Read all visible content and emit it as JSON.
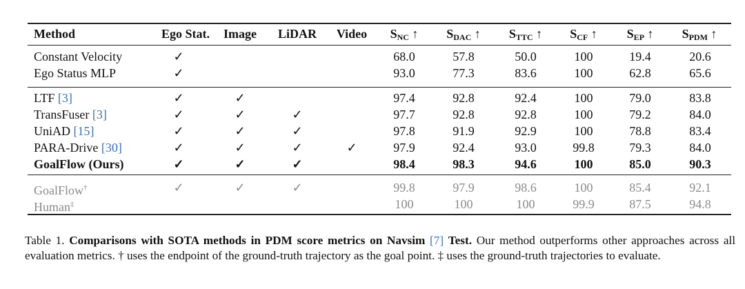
{
  "table": {
    "headers": {
      "method": "Method",
      "ego": "Ego Stat.",
      "image": "Image",
      "lidar": "LiDAR",
      "video": "Video",
      "s_letter": "S",
      "arrow": "↑",
      "nc": "NC",
      "dac": "DAC",
      "ttc": "TTC",
      "cf": "CF",
      "ep": "EP",
      "pdm": "PDM"
    },
    "check": "✓",
    "group1": [
      {
        "method": "Constant Velocity",
        "ego": "✓",
        "image": "",
        "lidar": "",
        "video": "",
        "nc": "68.0",
        "dac": "57.8",
        "ttc": "50.0",
        "cf": "100",
        "ep": "19.4",
        "pdm": "20.6"
      },
      {
        "method": "Ego Status MLP",
        "ego": "✓",
        "image": "",
        "lidar": "",
        "video": "",
        "nc": "93.0",
        "dac": "77.3",
        "ttc": "83.6",
        "cf": "100",
        "ep": "62.8",
        "pdm": "65.6"
      }
    ],
    "group2": [
      {
        "method": "LTF",
        "cite": "[3]",
        "ego": "✓",
        "image": "✓",
        "lidar": "",
        "video": "",
        "nc": "97.4",
        "dac": "92.8",
        "ttc": "92.4",
        "cf": "100",
        "ep": "79.0",
        "pdm": "83.8"
      },
      {
        "method": "TransFuser",
        "cite": "[3]",
        "ego": "✓",
        "image": "✓",
        "lidar": "✓",
        "video": "",
        "nc": "97.7",
        "dac": "92.8",
        "ttc": "92.8",
        "cf": "100",
        "ep": "79.2",
        "pdm": "84.0"
      },
      {
        "method": "UniAD",
        "cite": "[15]",
        "ego": "✓",
        "image": "✓",
        "lidar": "✓",
        "video": "",
        "nc": "97.8",
        "dac": "91.9",
        "ttc": "92.9",
        "cf": "100",
        "ep": "78.8",
        "pdm": "83.4"
      },
      {
        "method": "PARA-Drive",
        "cite": "[30]",
        "ego": "✓",
        "image": "✓",
        "lidar": "✓",
        "video": "✓",
        "nc": "97.9",
        "dac": "92.4",
        "ttc": "93.0",
        "cf": "99.8",
        "ep": "79.3",
        "pdm": "84.0"
      },
      {
        "method": "GoalFlow (Ours)",
        "cite": "",
        "ego": "✓",
        "image": "✓",
        "lidar": "✓",
        "video": "",
        "nc": "98.4",
        "dac": "98.3",
        "ttc": "94.6",
        "cf": "100",
        "ep": "85.0",
        "pdm": "90.3"
      }
    ],
    "group3": [
      {
        "method": "GoalFlow",
        "mark": "†",
        "ego": "✓",
        "image": "✓",
        "lidar": "✓",
        "video": "",
        "nc": "99.8",
        "dac": "97.9",
        "ttc": "98.6",
        "cf": "100",
        "ep": "85.4",
        "pdm": "92.1"
      },
      {
        "method": "Human",
        "mark": "‡",
        "ego": "",
        "image": "",
        "lidar": "",
        "video": "",
        "nc": "100",
        "dac": "100",
        "ttc": "100",
        "cf": "99.9",
        "ep": "87.5",
        "pdm": "94.8"
      }
    ]
  },
  "caption": {
    "label": "Table 1.",
    "bold_text": "Comparisons with SOTA methods in PDM score metrics on Navsim",
    "cite": "[7]",
    "bold_end": "Test.",
    "rest": "Our method outperforms other approaches across all evaluation metrics. † uses the endpoint of the ground-truth trajectory as the goal point. ‡ uses the ground-truth trajectories to evaluate."
  }
}
